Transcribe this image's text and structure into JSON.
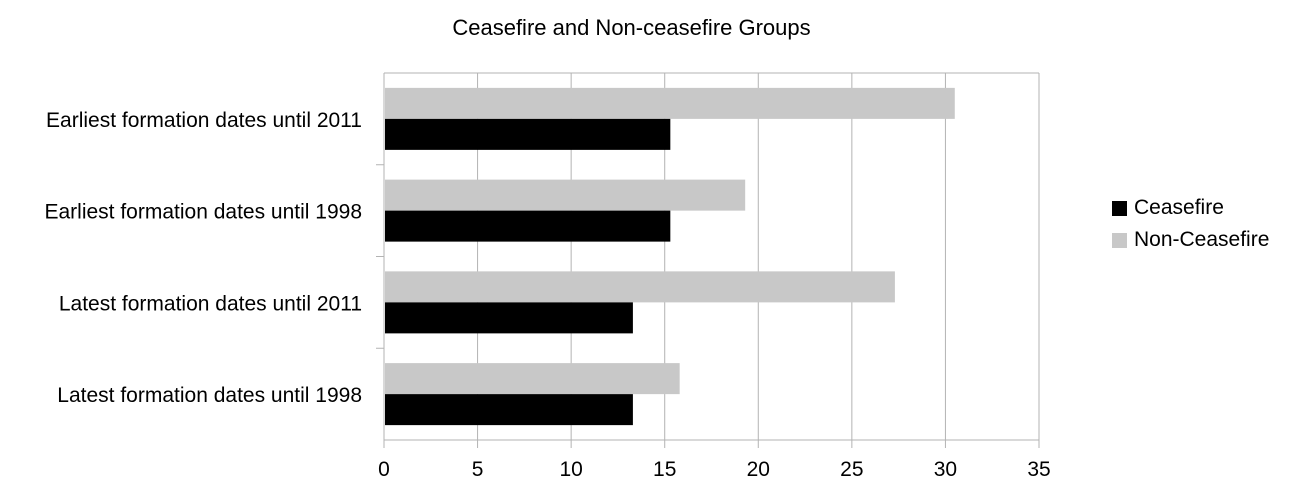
{
  "chart_data": {
    "type": "bar",
    "orientation": "horizontal",
    "title": "Ceasefire and Non-ceasefire Groups",
    "xlabel": "",
    "ylabel": "",
    "categories": [
      "Earliest formation dates until 2011",
      "Earliest formation dates until 1998",
      "Latest formation dates until 2011",
      "Latest formation dates until 1998"
    ],
    "series": [
      {
        "name": "Ceasefire",
        "color": "#000000",
        "values": [
          15.3,
          15.3,
          13.3,
          13.3
        ]
      },
      {
        "name": "Non-Ceasefire",
        "color": "#c8c8c8",
        "values": [
          30.5,
          19.3,
          27.3,
          15.8
        ]
      }
    ],
    "xlim": [
      0,
      35
    ],
    "xticks": [
      "0",
      "5",
      "10",
      "15",
      "20",
      "25",
      "30",
      "35"
    ],
    "grid": "vertical",
    "legend_position": "right"
  }
}
